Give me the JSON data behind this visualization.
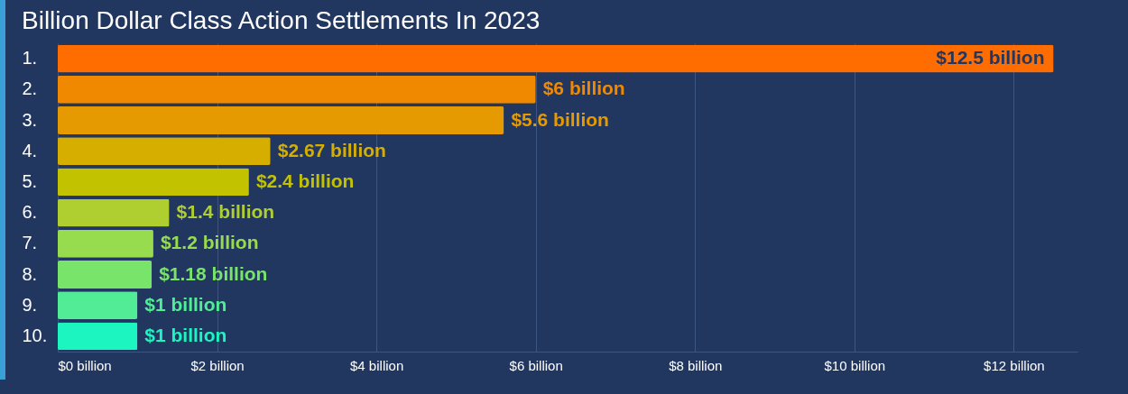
{
  "chart_data": {
    "type": "bar",
    "orientation": "horizontal",
    "title": "Billion Dollar Class Action Settlements In 2023",
    "categories": [
      "1.",
      "2.",
      "3.",
      "4.",
      "5.",
      "6.",
      "7.",
      "8.",
      "9.",
      "10."
    ],
    "values": [
      12.5,
      6,
      5.6,
      2.67,
      2.4,
      1.4,
      1.2,
      1.18,
      1,
      1
    ],
    "colors": [
      "#ff6c00",
      "#f08800",
      "#e49a00",
      "#d6ae00",
      "#c2c200",
      "#afce30",
      "#96dc4e",
      "#78e46a",
      "#52ec96",
      "#1cf5c0"
    ],
    "value_labels": [
      "$12.5 billion",
      "$6 billion",
      "$5.6 billion",
      "$2.67 billion",
      "$2.4 billion",
      "$1.4 billion",
      "$1.2 billion",
      "$1.18 billion",
      "$1 billion",
      "$1 billion"
    ],
    "xlim": [
      0,
      12.8
    ],
    "xticks": [
      {
        "value": 0,
        "label": "$0 billion"
      },
      {
        "value": 2,
        "label": "$2 billion"
      },
      {
        "value": 4,
        "label": "$4 billion"
      },
      {
        "value": 6,
        "label": "$6 billion"
      },
      {
        "value": 8,
        "label": "$8 billion"
      },
      {
        "value": 10,
        "label": "$10 billion"
      },
      {
        "value": 12,
        "label": "$12 billion"
      }
    ],
    "grid": "x"
  }
}
